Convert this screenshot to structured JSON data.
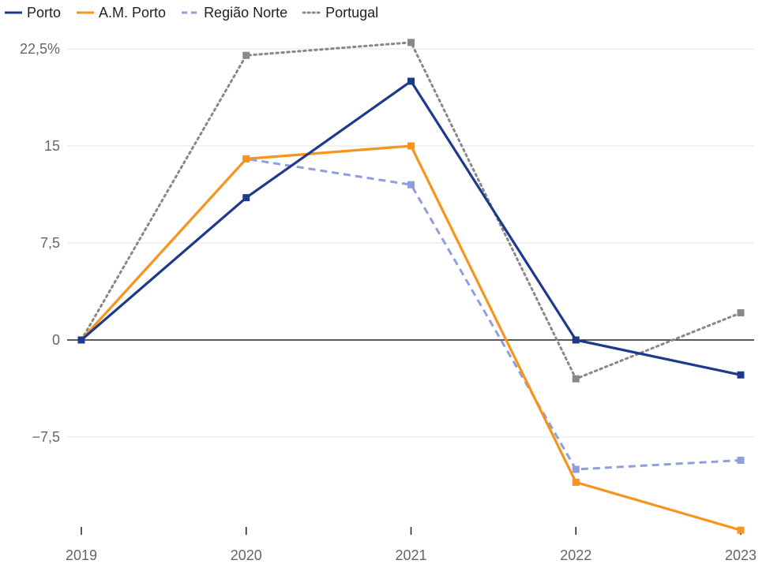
{
  "chart_data": {
    "type": "line",
    "title": "",
    "xlabel": "",
    "ylabel": "",
    "categories": [
      "2019",
      "2020",
      "2021",
      "2022",
      "2023"
    ],
    "ylim": [
      -14.7,
      22.5
    ],
    "y_ticks": [
      {
        "value": 22.5,
        "label": "22,5%"
      },
      {
        "value": 15,
        "label": "15"
      },
      {
        "value": 7.5,
        "label": "7,5"
      },
      {
        "value": 0,
        "label": "0"
      },
      {
        "value": -7.5,
        "label": "−7,5"
      }
    ],
    "grid": true,
    "legend_position": "top-left",
    "series": [
      {
        "name": "Porto",
        "color": "#1f3a8a",
        "dash": "solid",
        "values": [
          0,
          11,
          20,
          0,
          -2.7
        ]
      },
      {
        "name": "A.M. Porto",
        "color": "#f7941d",
        "dash": "solid",
        "values": [
          0,
          14,
          15,
          -11,
          -14.7
        ]
      },
      {
        "name": "Região Norte",
        "color": "#8e9ede",
        "dash": "dashed",
        "values": [
          0,
          14,
          12,
          -10,
          -9.3
        ]
      },
      {
        "name": "Portugal",
        "color": "#888888",
        "dash": "dotted",
        "values": [
          0,
          22,
          23,
          -3,
          2.1
        ]
      }
    ]
  }
}
